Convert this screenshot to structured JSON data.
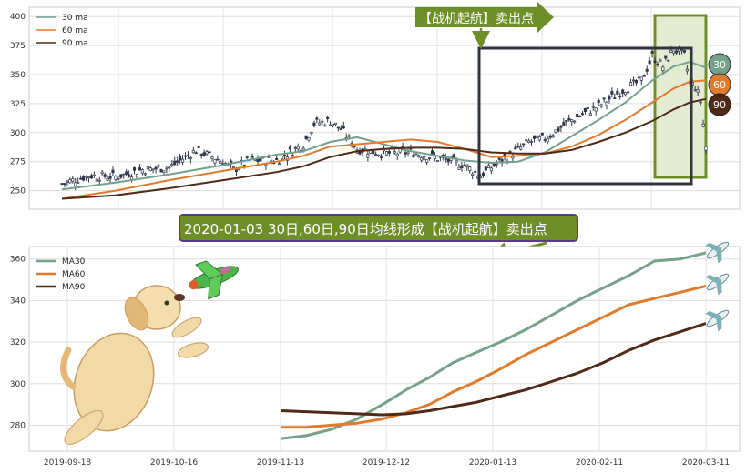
{
  "colors": {
    "ma30": "#75A08A",
    "ma60": "#E07B2E",
    "ma90": "#4E2A17",
    "candle": "#2F3648",
    "highlight_box": "#6E8F28",
    "highlight_fill": "#E3EBD3",
    "dark_box": "#2F3440",
    "label_bg": "#6E8F28",
    "label_border": "#5A3A8C"
  },
  "top_chart": {
    "legend": [
      "30 ma",
      "60 ma",
      "90 ma"
    ],
    "y_ticks": [
      "400",
      "375",
      "350",
      "325",
      "300",
      "275",
      "250"
    ],
    "arrow_label": "【战机起航】卖出点",
    "badges": [
      "30",
      "60",
      "90"
    ]
  },
  "banner": {
    "text": "2020-01-03 30日,60日,90日均线形成【战机起航】卖出点"
  },
  "chart_data": [
    {
      "type": "line",
      "title": "",
      "y_ticks": [
        400,
        375,
        350,
        325,
        300,
        275,
        250
      ],
      "ylim": [
        234,
        408
      ],
      "x_index_range": [
        0,
        120
      ],
      "series": [
        {
          "name": "30 ma",
          "x": [
            0,
            10,
            20,
            30,
            40,
            45,
            50,
            55,
            60,
            65,
            70,
            75,
            80,
            85,
            90,
            95,
            100,
            105,
            110,
            114,
            117,
            120
          ],
          "y": [
            251,
            257,
            264,
            272,
            281,
            284,
            292,
            296,
            290,
            284,
            280,
            276,
            274,
            275,
            283,
            297,
            311,
            326,
            345,
            357,
            361,
            356
          ]
        },
        {
          "name": "60 ma",
          "x": [
            0,
            10,
            20,
            30,
            40,
            45,
            50,
            55,
            60,
            65,
            70,
            75,
            80,
            85,
            90,
            95,
            100,
            105,
            110,
            114,
            117,
            120
          ],
          "y": [
            243,
            250,
            259,
            267,
            275,
            280,
            288,
            290,
            292,
            294,
            292,
            286,
            279,
            280,
            282,
            288,
            298,
            311,
            326,
            338,
            344,
            345
          ]
        },
        {
          "name": "90 ma",
          "x": [
            0,
            10,
            20,
            30,
            40,
            45,
            50,
            55,
            60,
            65,
            70,
            75,
            80,
            85,
            90,
            95,
            100,
            105,
            110,
            114,
            117,
            120
          ],
          "y": [
            243,
            246,
            252,
            259,
            266,
            271,
            279,
            284,
            286,
            287,
            287,
            286,
            283,
            282,
            282,
            285,
            292,
            300,
            310,
            320,
            326,
            329
          ]
        },
        {
          "name": "close",
          "x": [
            0,
            5,
            10,
            15,
            20,
            25,
            30,
            32,
            35,
            40,
            45,
            47,
            50,
            52,
            55,
            60,
            65,
            70,
            75,
            78,
            80,
            84,
            87,
            90,
            95,
            100,
            105,
            108,
            110,
            112,
            114,
            116,
            117,
            118,
            119,
            120
          ],
          "y": [
            256,
            263,
            262,
            268,
            270,
            285,
            275,
            268,
            276,
            276,
            290,
            308,
            310,
            303,
            286,
            282,
            283,
            278,
            272,
            263,
            270,
            282,
            292,
            295,
            311,
            323,
            338,
            345,
            366,
            357,
            372,
            366,
            343,
            340,
            327,
            288
          ]
        }
      ]
    },
    {
      "type": "line",
      "title": "",
      "legend": [
        "MA30",
        "MA60",
        "MA90"
      ],
      "x_ticks": [
        "2019-09-18",
        "2019-10-16",
        "2019-11-13",
        "2019-12-12",
        "2020-01-13",
        "2020-02-11",
        "2020-03-11"
      ],
      "y_ticks": [
        280,
        300,
        320,
        340,
        360
      ],
      "ylim": [
        267.5,
        366
      ],
      "x_dates": [
        "2019-11-13",
        "2019-11-20",
        "2019-11-27",
        "2019-12-04",
        "2019-12-11",
        "2019-12-18",
        "2019-12-25",
        "2020-01-01",
        "2020-01-08",
        "2020-01-15",
        "2020-01-22",
        "2020-01-29",
        "2020-02-05",
        "2020-02-12",
        "2020-02-19",
        "2020-02-26",
        "2020-03-04",
        "2020-03-11"
      ],
      "series": [
        {
          "name": "MA30",
          "y": [
            273.5,
            275,
            278,
            283,
            290,
            297,
            303,
            310,
            315,
            320,
            326,
            333,
            340,
            346,
            352,
            359,
            360,
            363
          ]
        },
        {
          "name": "MA60",
          "y": [
            279,
            279,
            280,
            281,
            283,
            286,
            290,
            296,
            301,
            307,
            314,
            320,
            326,
            332,
            338,
            341,
            344,
            347
          ]
        },
        {
          "name": "MA90",
          "y": [
            287,
            286.5,
            286,
            285.5,
            285,
            285.5,
            287,
            289,
            291,
            294,
            297,
            301,
            305,
            310,
            316,
            321,
            325,
            329
          ]
        }
      ]
    }
  ]
}
